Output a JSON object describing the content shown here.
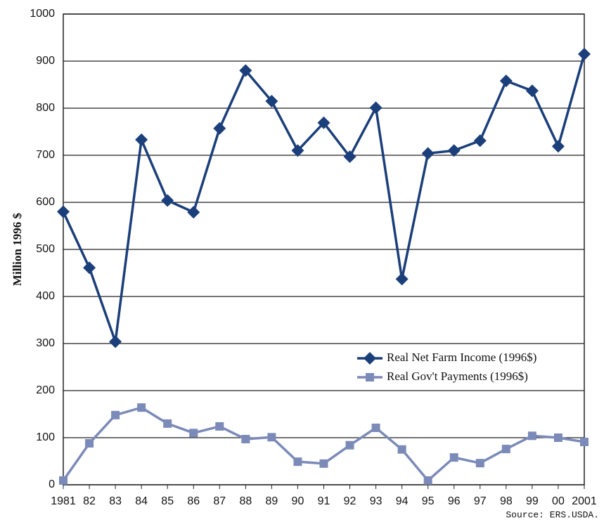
{
  "chart_data": {
    "type": "line",
    "y_label": "Million 1996 $",
    "source": "Source: ERS.USDA.",
    "categories": [
      "1981",
      "82",
      "83",
      "84",
      "85",
      "86",
      "87",
      "88",
      "89",
      "90",
      "91",
      "92",
      "93",
      "94",
      "95",
      "96",
      "97",
      "98",
      "99",
      "00",
      "2001"
    ],
    "series": [
      {
        "name": "Real Net Farm Income (1996$)",
        "color": "#1b3f7a",
        "marker": "diamond",
        "values": [
          580,
          461,
          304,
          733,
          604,
          579,
          757,
          880,
          815,
          710,
          769,
          697,
          801,
          437,
          704,
          710,
          731,
          858,
          837,
          719,
          915
        ]
      },
      {
        "name": "Real Gov't Payments (1996$)",
        "color": "#7b8ab8",
        "marker": "square",
        "values": [
          9,
          88,
          148,
          164,
          130,
          110,
          124,
          97,
          101,
          49,
          45,
          84,
          121,
          75,
          9,
          58,
          46,
          76,
          104,
          100,
          91
        ]
      }
    ],
    "ylim": [
      0,
      1000
    ],
    "yticks": [
      0,
      100,
      200,
      300,
      400,
      500,
      600,
      700,
      800,
      900,
      1000
    ],
    "grid": true,
    "legend": "lower right"
  }
}
